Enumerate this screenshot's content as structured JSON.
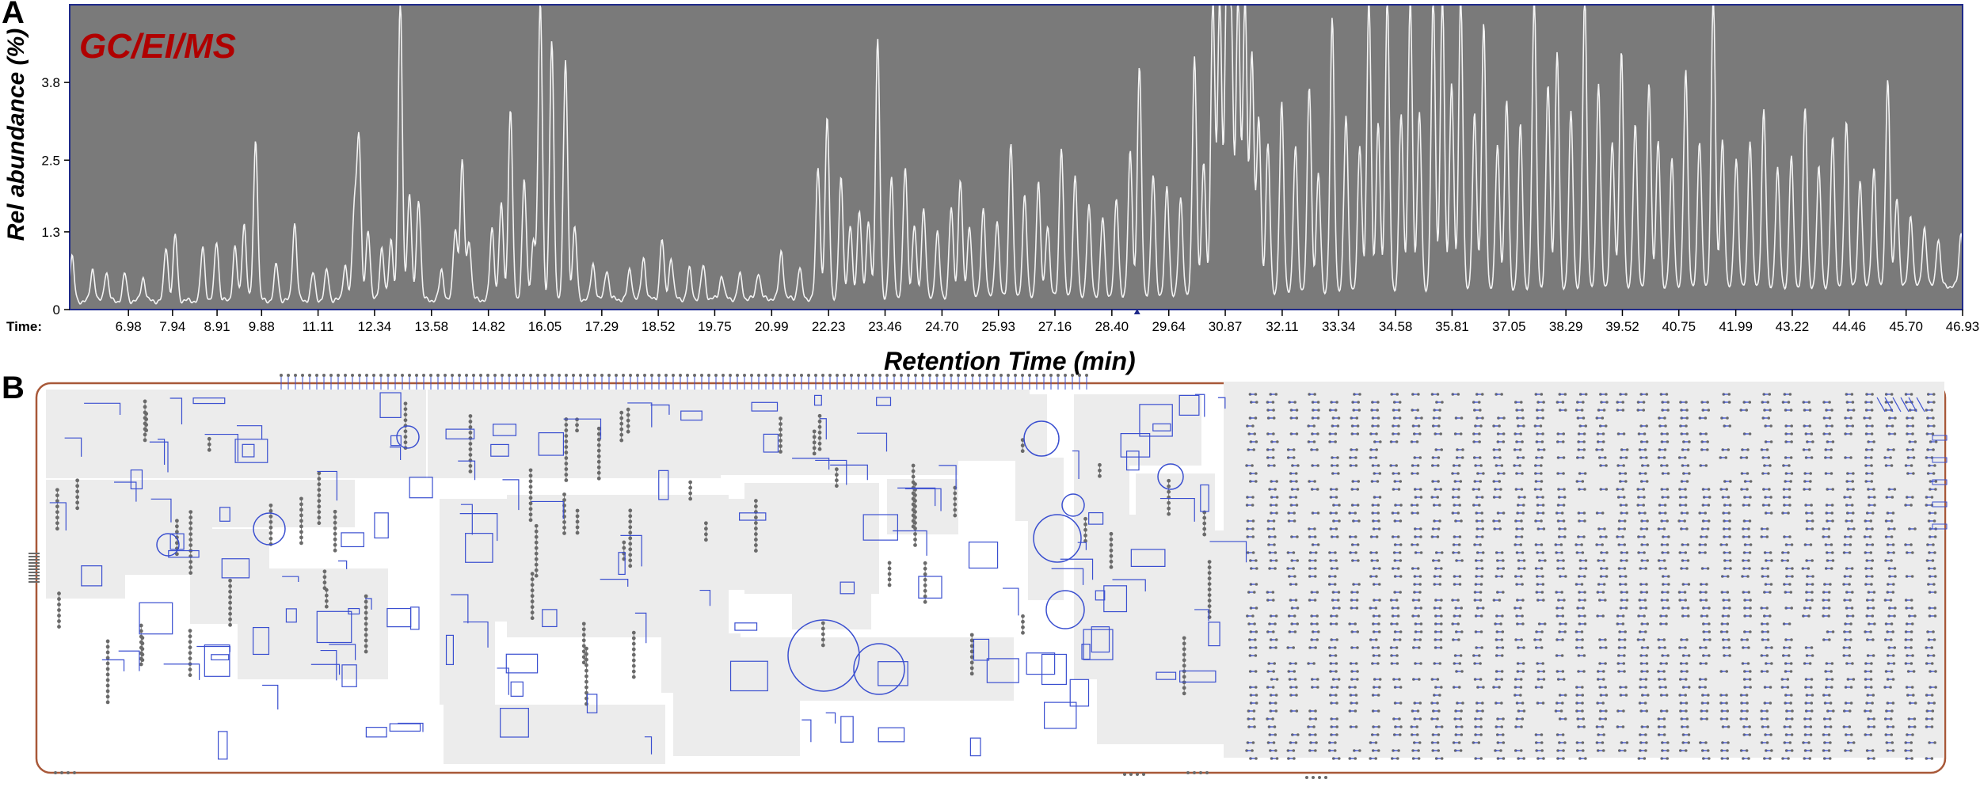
{
  "panels": {
    "a_letter": "A",
    "b_letter": "B"
  },
  "chart": {
    "inset_label": "GC/EI/MS",
    "ylabel": "Rel abundance (%)",
    "xlabel": "Retention Time (min)",
    "x_axis_prefix": "Time:"
  },
  "colors": {
    "plot_bg": "#7a7a7a",
    "trace": "#f4f4f4",
    "frame": "#1f2a8a",
    "inset_label": "#b00000",
    "map_border": "#a85838",
    "map_block": "#ececec",
    "pathway_line": "#3a4fd0",
    "node": "#6a6a6a"
  },
  "chart_data": {
    "type": "line",
    "title": "GC/EI/MS",
    "xlabel": "Retention Time (min)",
    "ylabel": "Rel abundance (%)",
    "xlim": [
      5.7,
      46.93
    ],
    "ylim": [
      0,
      5.1
    ],
    "grid": false,
    "x_ticks": [
      "6.98",
      "7.94",
      "8.91",
      "9.88",
      "11.11",
      "12.34",
      "13.58",
      "14.82",
      "16.05",
      "17.29",
      "18.52",
      "19.75",
      "20.99",
      "22.23",
      "23.46",
      "24.70",
      "25.93",
      "27.16",
      "28.40",
      "29.64",
      "30.87",
      "32.11",
      "33.34",
      "34.58",
      "35.81",
      "37.05",
      "38.29",
      "39.52",
      "40.75",
      "41.99",
      "43.22",
      "44.46",
      "45.70",
      "46.93"
    ],
    "y_ticks": [
      "0",
      "1.3",
      "2.5",
      "3.8"
    ],
    "series": [
      {
        "peaks": [
          [
            5.75,
            0.75
          ],
          [
            6.2,
            0.55
          ],
          [
            6.5,
            0.5
          ],
          [
            6.9,
            0.45
          ],
          [
            7.3,
            0.4
          ],
          [
            7.8,
            0.9
          ],
          [
            8.0,
            1.1
          ],
          [
            8.6,
            0.9
          ],
          [
            8.9,
            1.0
          ],
          [
            9.3,
            0.9
          ],
          [
            9.5,
            1.3
          ],
          [
            9.75,
            2.7
          ],
          [
            10.2,
            0.6
          ],
          [
            10.6,
            1.3
          ],
          [
            11.0,
            0.45
          ],
          [
            11.3,
            0.5
          ],
          [
            11.7,
            0.6
          ],
          [
            11.9,
            1.5
          ],
          [
            12.0,
            2.7
          ],
          [
            12.2,
            1.2
          ],
          [
            12.5,
            0.9
          ],
          [
            12.7,
            1.0
          ],
          [
            12.9,
            5.0
          ],
          [
            13.1,
            1.8
          ],
          [
            13.3,
            1.7
          ],
          [
            13.8,
            0.5
          ],
          [
            14.1,
            1.2
          ],
          [
            14.25,
            2.3
          ],
          [
            14.4,
            1.0
          ],
          [
            14.9,
            1.2
          ],
          [
            15.1,
            1.6
          ],
          [
            15.3,
            3.2
          ],
          [
            15.6,
            2.0
          ],
          [
            15.8,
            1.0
          ],
          [
            15.95,
            5.0
          ],
          [
            16.2,
            4.3
          ],
          [
            16.5,
            4.0
          ],
          [
            16.7,
            1.2
          ],
          [
            17.1,
            0.6
          ],
          [
            17.4,
            0.5
          ],
          [
            17.9,
            0.5
          ],
          [
            18.2,
            0.7
          ],
          [
            18.6,
            1.0
          ],
          [
            18.8,
            0.7
          ],
          [
            19.2,
            0.5
          ],
          [
            19.5,
            0.55
          ],
          [
            19.9,
            0.4
          ],
          [
            20.3,
            0.4
          ],
          [
            20.7,
            0.45
          ],
          [
            21.2,
            0.8
          ],
          [
            21.6,
            0.5
          ],
          [
            22.0,
            2.2
          ],
          [
            22.2,
            3.0
          ],
          [
            22.5,
            2.0
          ],
          [
            22.7,
            1.2
          ],
          [
            22.9,
            1.5
          ],
          [
            23.1,
            1.3
          ],
          [
            23.3,
            4.3
          ],
          [
            23.6,
            2.0
          ],
          [
            23.9,
            2.2
          ],
          [
            24.1,
            1.2
          ],
          [
            24.3,
            1.5
          ],
          [
            24.6,
            1.1
          ],
          [
            24.9,
            1.5
          ],
          [
            25.1,
            2.0
          ],
          [
            25.3,
            1.2
          ],
          [
            25.6,
            1.5
          ],
          [
            25.9,
            1.3
          ],
          [
            26.2,
            2.6
          ],
          [
            26.5,
            1.7
          ],
          [
            26.8,
            1.9
          ],
          [
            27.0,
            1.2
          ],
          [
            27.3,
            2.5
          ],
          [
            27.6,
            2.0
          ],
          [
            27.9,
            1.5
          ],
          [
            28.2,
            1.3
          ],
          [
            28.5,
            1.6
          ],
          [
            28.8,
            2.4
          ],
          [
            29.0,
            3.8
          ],
          [
            29.3,
            2.0
          ],
          [
            29.6,
            1.8
          ],
          [
            29.9,
            1.6
          ],
          [
            30.2,
            4.0
          ],
          [
            30.4,
            2.2
          ],
          [
            30.6,
            5.0
          ],
          [
            30.75,
            5.0
          ],
          [
            30.9,
            5.0
          ],
          [
            31.0,
            4.5
          ],
          [
            31.15,
            5.0
          ],
          [
            31.3,
            5.0
          ],
          [
            31.45,
            4.0
          ],
          [
            31.6,
            3.0
          ],
          [
            31.8,
            2.5
          ],
          [
            32.1,
            3.2
          ],
          [
            32.4,
            2.5
          ],
          [
            32.7,
            3.5
          ],
          [
            32.9,
            2.0
          ],
          [
            33.2,
            4.6
          ],
          [
            33.5,
            3.0
          ],
          [
            33.8,
            2.5
          ],
          [
            34.0,
            5.0
          ],
          [
            34.2,
            2.8
          ],
          [
            34.4,
            5.0
          ],
          [
            34.7,
            3.0
          ],
          [
            34.9,
            5.0
          ],
          [
            35.1,
            3.0
          ],
          [
            35.4,
            5.0
          ],
          [
            35.6,
            5.0
          ],
          [
            35.8,
            3.5
          ],
          [
            36.0,
            5.0
          ],
          [
            36.3,
            3.0
          ],
          [
            36.5,
            4.5
          ],
          [
            36.8,
            2.5
          ],
          [
            37.0,
            3.2
          ],
          [
            37.3,
            2.8
          ],
          [
            37.6,
            5.0
          ],
          [
            37.9,
            3.5
          ],
          [
            38.1,
            4.0
          ],
          [
            38.4,
            3.0
          ],
          [
            38.7,
            5.0
          ],
          [
            39.0,
            3.5
          ],
          [
            39.3,
            2.5
          ],
          [
            39.5,
            4.0
          ],
          [
            39.8,
            2.8
          ],
          [
            40.1,
            3.5
          ],
          [
            40.3,
            2.5
          ],
          [
            40.6,
            2.2
          ],
          [
            40.9,
            3.7
          ],
          [
            41.2,
            2.5
          ],
          [
            41.5,
            5.0
          ],
          [
            41.7,
            2.5
          ],
          [
            42.0,
            2.2
          ],
          [
            42.3,
            2.5
          ],
          [
            42.6,
            3.0
          ],
          [
            42.9,
            2.0
          ],
          [
            43.2,
            2.2
          ],
          [
            43.5,
            3.0
          ],
          [
            43.8,
            2.0
          ],
          [
            44.1,
            2.5
          ],
          [
            44.4,
            2.8
          ],
          [
            44.7,
            1.8
          ],
          [
            45.0,
            2.0
          ],
          [
            45.3,
            3.5
          ],
          [
            45.5,
            1.5
          ],
          [
            45.8,
            1.2
          ],
          [
            46.1,
            1.0
          ],
          [
            46.4,
            0.8
          ],
          [
            46.9,
            0.9
          ]
        ]
      }
    ]
  }
}
